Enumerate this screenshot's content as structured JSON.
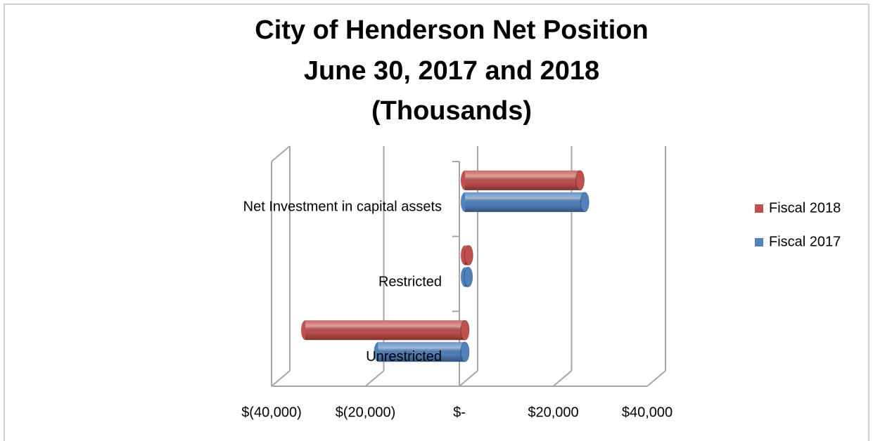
{
  "chart_data": {
    "type": "bar3d_horizontal",
    "title": [
      "City of Henderson Net Position",
      "June 30, 2017 and 2018",
      "(Thousands)"
    ],
    "categories": [
      "Net Investment in capital assets",
      "Restricted",
      "Unrestricted"
    ],
    "series": [
      {
        "name": "Fiscal 2018",
        "color": "#c0504d",
        "values": [
          24500,
          800,
          -34000
        ]
      },
      {
        "name": "Fiscal 2017",
        "color": "#4f81bd",
        "values": [
          25500,
          700,
          -18500
        ]
      }
    ],
    "xlim": [
      -40000,
      40000
    ],
    "xticks": [
      {
        "value": -40000,
        "label": "$(40,000)"
      },
      {
        "value": -20000,
        "label": "$(20,000)"
      },
      {
        "value": 0,
        "label": "$-"
      },
      {
        "value": 20000,
        "label": "$20,000"
      },
      {
        "value": 40000,
        "label": "$40,000"
      }
    ],
    "grid": true,
    "legend": "right"
  }
}
